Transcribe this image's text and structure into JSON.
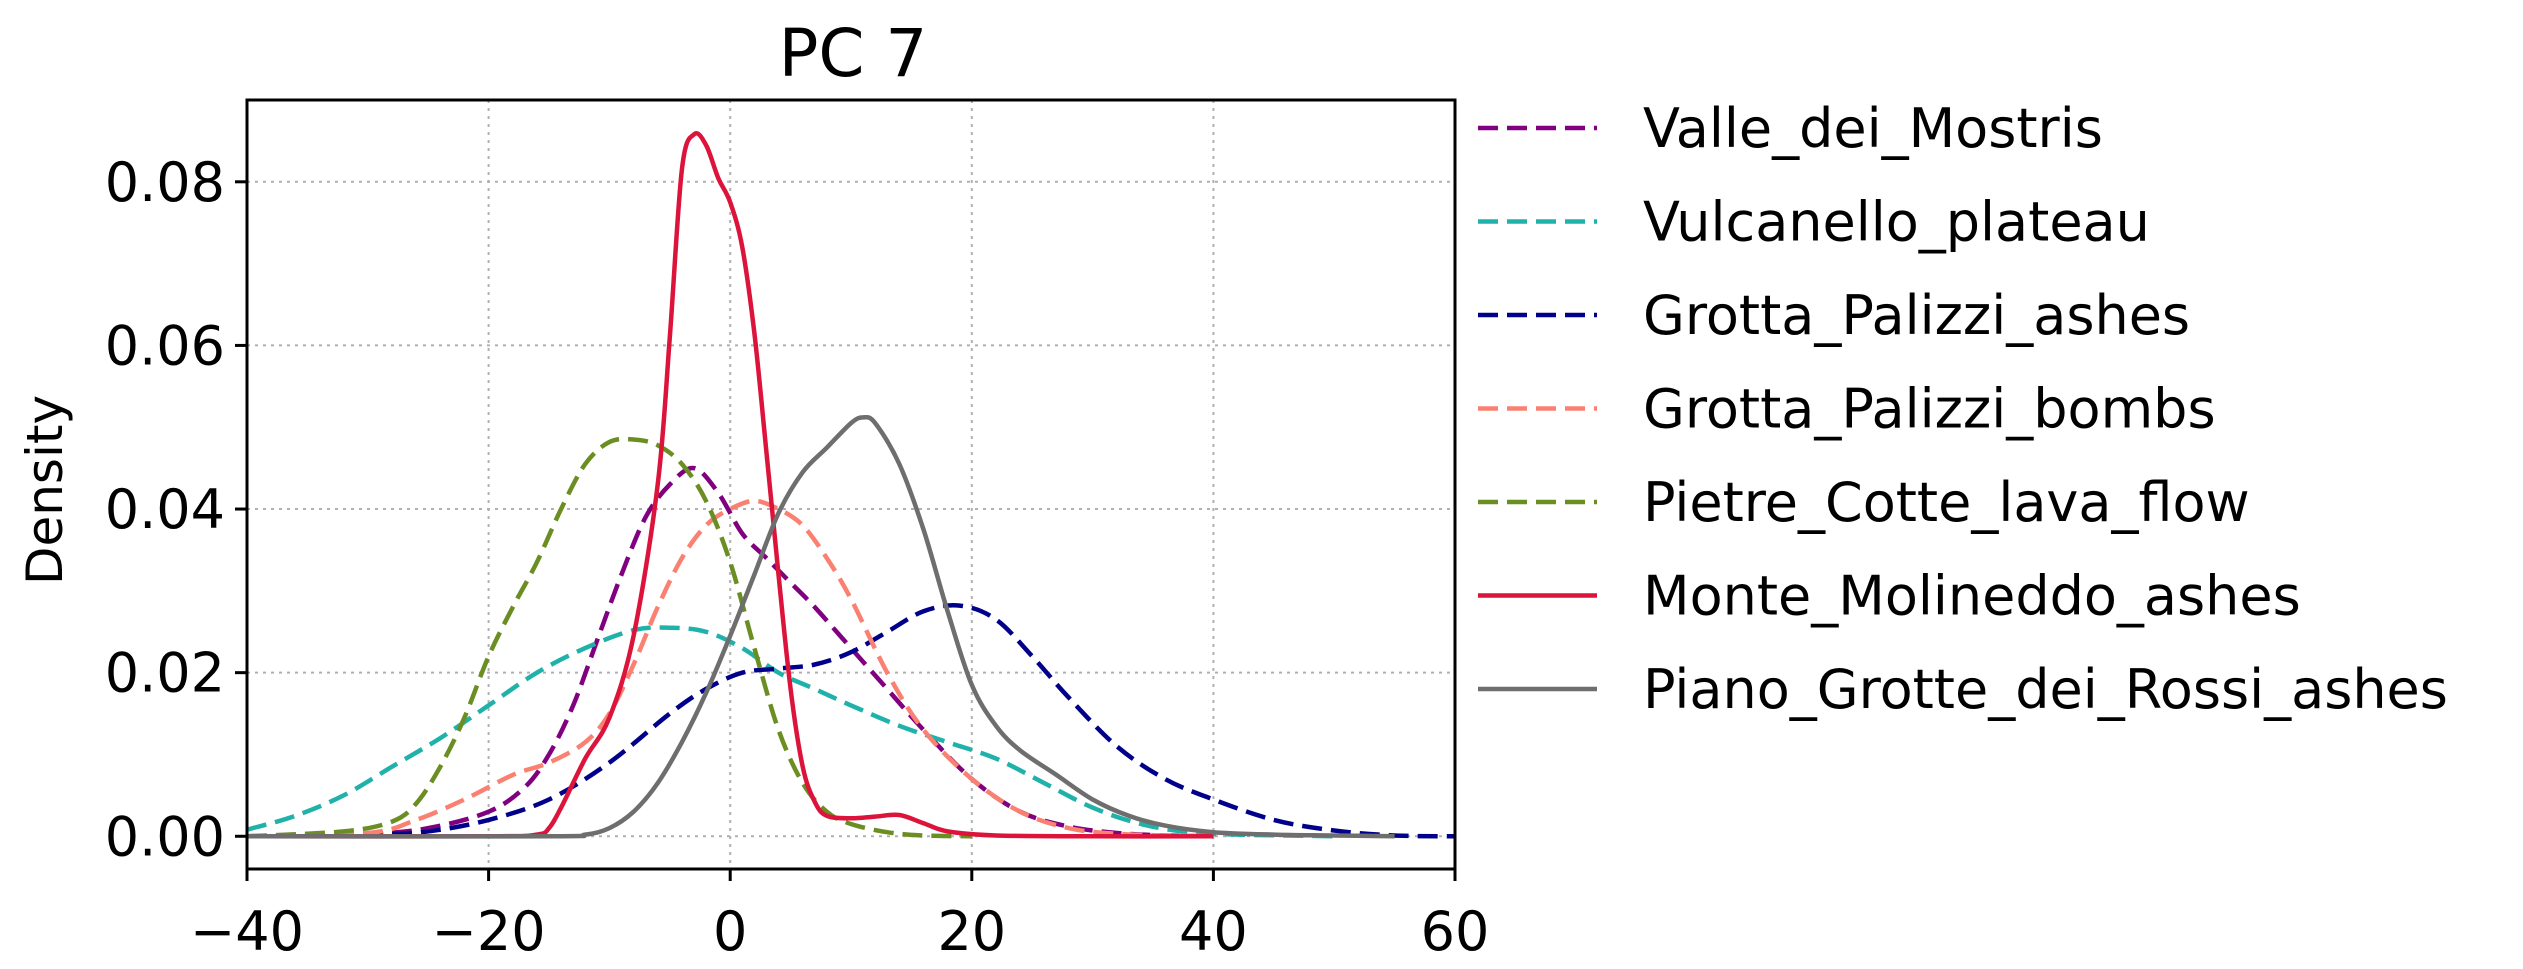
{
  "chart_data": {
    "type": "line",
    "title": "PC 7",
    "xlabel": "",
    "ylabel": "Density",
    "xlim": [
      -40,
      60
    ],
    "ylim": [
      -0.004,
      0.09
    ],
    "xticks": [
      -40,
      -20,
      0,
      20,
      40,
      60
    ],
    "xtick_labels": [
      "−40",
      "−20",
      "0",
      "20",
      "40",
      "60"
    ],
    "yticks": [
      0.0,
      0.02,
      0.04,
      0.06,
      0.08
    ],
    "ytick_labels": [
      "0.00",
      "0.02",
      "0.04",
      "0.06",
      "0.08"
    ],
    "grid": true,
    "legend_position": "outside-right",
    "series": [
      {
        "name": "Valle_dei_Mostris",
        "color": "#800080",
        "dashed": true,
        "x": [
          -40,
          -30,
          -25,
          -20,
          -17,
          -15,
          -13,
          -11,
          -9,
          -7,
          -5,
          -3,
          -1,
          1,
          3,
          5,
          7,
          10,
          13,
          16,
          20,
          24,
          28,
          32,
          36,
          40
        ],
        "y": [
          0.0,
          0.0003,
          0.001,
          0.003,
          0.006,
          0.01,
          0.016,
          0.024,
          0.032,
          0.039,
          0.043,
          0.045,
          0.042,
          0.037,
          0.034,
          0.031,
          0.028,
          0.023,
          0.018,
          0.013,
          0.007,
          0.003,
          0.0012,
          0.0004,
          0.0001,
          0.0
        ]
      },
      {
        "name": "Vulcanello_plateau",
        "color": "#20b2aa",
        "dashed": true,
        "x": [
          -40,
          -36,
          -32,
          -28,
          -24,
          -20,
          -16,
          -12,
          -8,
          -5,
          -2,
          1,
          4,
          7,
          10,
          14,
          18,
          22,
          26,
          30,
          34,
          38,
          42,
          46,
          50
        ],
        "y": [
          0.0008,
          0.0025,
          0.005,
          0.0085,
          0.012,
          0.016,
          0.02,
          0.023,
          0.0252,
          0.0255,
          0.025,
          0.023,
          0.02,
          0.018,
          0.016,
          0.0135,
          0.0115,
          0.0095,
          0.0065,
          0.0035,
          0.0015,
          0.0005,
          0.0002,
          0.0001,
          0.0
        ]
      },
      {
        "name": "Grotta_Palizzi_ashes",
        "color": "#00008b",
        "dashed": true,
        "x": [
          -40,
          -30,
          -25,
          -20,
          -15,
          -10,
          -5,
          -2,
          1,
          4,
          7,
          10,
          13,
          16,
          19,
          22,
          25,
          28,
          32,
          36,
          40,
          45,
          50,
          55,
          60
        ],
        "y": [
          0.0,
          0.0002,
          0.0006,
          0.002,
          0.0045,
          0.009,
          0.015,
          0.018,
          0.02,
          0.0205,
          0.021,
          0.0225,
          0.025,
          0.0275,
          0.0282,
          0.0265,
          0.022,
          0.017,
          0.011,
          0.007,
          0.0045,
          0.002,
          0.0007,
          0.0001,
          0.0
        ]
      },
      {
        "name": "Grotta_Palizzi_bombs",
        "color": "#fa8072",
        "dashed": true,
        "x": [
          -40,
          -30,
          -26,
          -22,
          -18,
          -15,
          -12,
          -10,
          -8,
          -6,
          -4,
          -2,
          0,
          2,
          4,
          6,
          8,
          10,
          13,
          16,
          20,
          24,
          28,
          32,
          36,
          40
        ],
        "y": [
          0.0,
          0.0004,
          0.002,
          0.0045,
          0.0075,
          0.009,
          0.0115,
          0.015,
          0.021,
          0.028,
          0.034,
          0.038,
          0.04,
          0.041,
          0.04,
          0.038,
          0.034,
          0.029,
          0.02,
          0.013,
          0.007,
          0.003,
          0.001,
          0.0003,
          0.0001,
          0.0
        ]
      },
      {
        "name": "Pietre_Cotte_lava_flow",
        "color": "#6b8e23",
        "dashed": true,
        "x": [
          -40,
          -32,
          -28,
          -26,
          -24,
          -22,
          -20,
          -18,
          -16,
          -14,
          -12,
          -10,
          -8,
          -6,
          -4,
          -2,
          0,
          2,
          4,
          6,
          8,
          10,
          13,
          16,
          20
        ],
        "y": [
          0.0,
          0.0006,
          0.0018,
          0.004,
          0.0085,
          0.0145,
          0.022,
          0.028,
          0.0335,
          0.04,
          0.0455,
          0.0482,
          0.0485,
          0.0478,
          0.0455,
          0.041,
          0.0335,
          0.023,
          0.013,
          0.0065,
          0.003,
          0.0015,
          0.0005,
          0.0001,
          0.0
        ]
      },
      {
        "name": "Monte_Molineddo_ashes",
        "color": "#dc143c",
        "dashed": false,
        "x": [
          -40,
          -20,
          -16,
          -15,
          -14,
          -12,
          -10,
          -8,
          -6,
          -5,
          -4,
          -3,
          -2,
          -1,
          0,
          1,
          2,
          3,
          4,
          5,
          6,
          7,
          8,
          10,
          12,
          14,
          16,
          18,
          22,
          30,
          40
        ],
        "y": [
          0.0,
          0.0,
          0.0002,
          0.001,
          0.0035,
          0.0095,
          0.0145,
          0.0245,
          0.043,
          0.061,
          0.0815,
          0.0858,
          0.0845,
          0.0805,
          0.0775,
          0.072,
          0.0615,
          0.047,
          0.032,
          0.018,
          0.0085,
          0.0042,
          0.0025,
          0.0022,
          0.0024,
          0.0026,
          0.0016,
          0.0006,
          0.0001,
          0.0,
          0.0
        ]
      },
      {
        "name": "Piano_Grotte_dei_Rossi_ashes",
        "color": "#6e6e6e",
        "dashed": false,
        "x": [
          -40,
          -15,
          -12,
          -10,
          -8,
          -6,
          -4,
          -2,
          0,
          2,
          4,
          6,
          8,
          10,
          11,
          12,
          14,
          16,
          18,
          20,
          22,
          24,
          27,
          30,
          33,
          36,
          40,
          45,
          50,
          55
        ],
        "y": [
          0.0,
          0.0,
          0.0002,
          0.001,
          0.003,
          0.0065,
          0.0115,
          0.0175,
          0.0245,
          0.032,
          0.0395,
          0.0445,
          0.0475,
          0.0505,
          0.0512,
          0.0505,
          0.0455,
          0.0375,
          0.0275,
          0.0185,
          0.0135,
          0.0105,
          0.0075,
          0.0045,
          0.0025,
          0.0013,
          0.0005,
          0.0002,
          0.0001,
          0.0
        ]
      }
    ]
  }
}
